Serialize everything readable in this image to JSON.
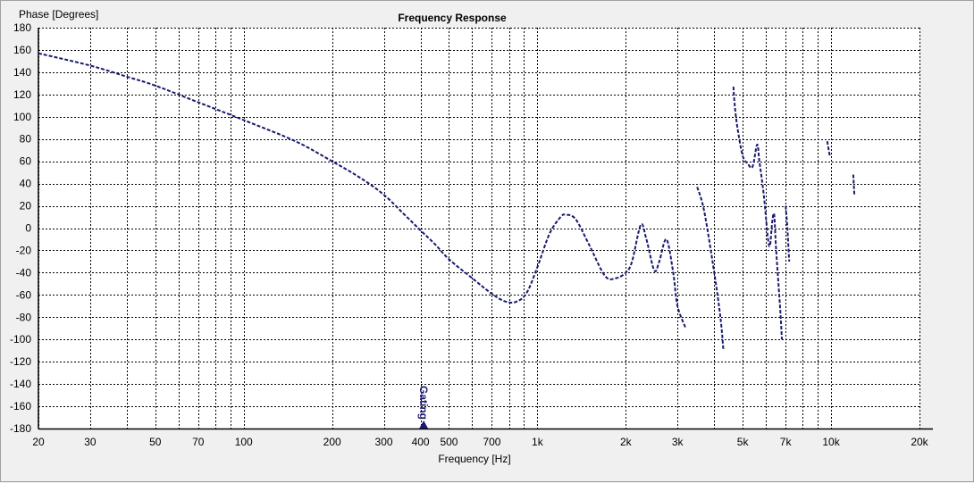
{
  "chart_data": {
    "type": "line",
    "title": "Frequency Response",
    "xlabel": "Frequency [Hz]",
    "ylabel": "Phase [Degrees]",
    "x_scale": "log",
    "xlim": [
      20,
      20000
    ],
    "ylim": [
      -180,
      180
    ],
    "grid": true,
    "x_ticks": [
      20,
      30,
      50,
      70,
      100,
      200,
      300,
      400,
      500,
      700,
      1000,
      2000,
      3000,
      5000,
      7000,
      10000,
      20000
    ],
    "x_tick_labels": [
      "20",
      "30",
      "50",
      "70",
      "100",
      "200",
      "300",
      "400",
      "500",
      "700",
      "1k",
      "2k",
      "3k",
      "5k",
      "7k",
      "10k",
      "20k"
    ],
    "x_gridlines": [
      20,
      30,
      40,
      50,
      60,
      70,
      80,
      90,
      100,
      200,
      300,
      400,
      500,
      600,
      700,
      800,
      900,
      1000,
      2000,
      3000,
      4000,
      5000,
      6000,
      7000,
      8000,
      9000,
      10000,
      20000
    ],
    "y_ticks": [
      180,
      160,
      140,
      120,
      100,
      80,
      60,
      40,
      20,
      0,
      -20,
      -40,
      -60,
      -80,
      -100,
      -120,
      -140,
      -160,
      -180
    ],
    "y_tick_labels": [
      "180",
      "160",
      "140",
      "120",
      "100",
      "80",
      "60",
      "40",
      "20",
      "0",
      "-20",
      "-40",
      "-60",
      "-80",
      "-100",
      "-120",
      "-140",
      "-160",
      "-180"
    ],
    "color": "#1a1a6e",
    "gating_marker": {
      "label": "Gating",
      "x": 410
    },
    "series": [
      {
        "segments": [
          [
            [
              20,
              157
            ],
            [
              30,
              146
            ],
            [
              40,
              136
            ],
            [
              50,
              128
            ],
            [
              70,
              113
            ],
            [
              100,
              97
            ],
            [
              150,
              78
            ],
            [
              200,
              60
            ],
            [
              250,
              45
            ],
            [
              300,
              30
            ],
            [
              350,
              13
            ],
            [
              400,
              -2
            ],
            [
              450,
              -15
            ],
            [
              500,
              -28
            ],
            [
              600,
              -45
            ],
            [
              700,
              -59
            ],
            [
              780,
              -66
            ],
            [
              850,
              -66
            ],
            [
              920,
              -58
            ],
            [
              1000,
              -35
            ],
            [
              1100,
              -5
            ],
            [
              1200,
              10
            ],
            [
              1250,
              12
            ],
            [
              1350,
              8
            ],
            [
              1500,
              -15
            ],
            [
              1700,
              -43
            ],
            [
              1850,
              -45
            ],
            [
              2000,
              -40
            ],
            [
              2100,
              -30
            ],
            [
              2250,
              3
            ],
            [
              2350,
              -10
            ],
            [
              2500,
              -38
            ],
            [
              2600,
              -30
            ],
            [
              2750,
              -10
            ],
            [
              2900,
              -40
            ],
            [
              3000,
              -70
            ],
            [
              3200,
              -90
            ]
          ],
          [
            [
              3500,
              37
            ],
            [
              3700,
              15
            ],
            [
              4000,
              -40
            ],
            [
              4200,
              -80
            ],
            [
              4300,
              -110
            ]
          ],
          [
            [
              4650,
              127
            ],
            [
              4700,
              110
            ],
            [
              4800,
              90
            ],
            [
              5000,
              65
            ],
            [
              5200,
              58
            ],
            [
              5400,
              55
            ],
            [
              5600,
              75
            ],
            [
              5700,
              60
            ],
            [
              5900,
              30
            ],
            [
              6100,
              -10
            ],
            [
              6200,
              -15
            ],
            [
              6300,
              5
            ],
            [
              6400,
              12
            ],
            [
              6500,
              -20
            ],
            [
              6700,
              -70
            ],
            [
              6800,
              -100
            ]
          ],
          [
            [
              7000,
              20
            ],
            [
              7100,
              0
            ],
            [
              7200,
              -30
            ]
          ],
          [
            [
              9700,
              78
            ],
            [
              9900,
              65
            ]
          ],
          [
            [
              11900,
              48
            ],
            [
              12000,
              30
            ]
          ]
        ]
      }
    ]
  }
}
